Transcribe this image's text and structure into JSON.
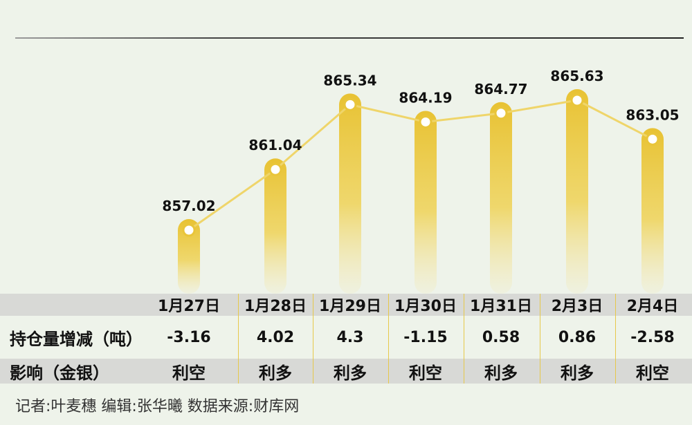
{
  "chart_data": {
    "type": "bar+line",
    "categories": [
      "1月27日",
      "1月28日",
      "1月29日",
      "1月30日",
      "1月31日",
      "2月3日",
      "2月4日"
    ],
    "values": [
      857.02,
      861.04,
      865.34,
      864.19,
      864.77,
      865.63,
      863.05
    ],
    "value_labels": [
      "857.02",
      "861.04",
      "865.34",
      "864.19",
      "864.77",
      "865.63",
      "863.05"
    ],
    "grid": false,
    "legend": "none",
    "colors": {
      "bar": "#e9c53a",
      "line": "#efd56a",
      "marker_fill": "#ffffff",
      "marker_stroke": "#e9c53a"
    }
  },
  "table": {
    "row_change_label": "持仓量增减（吨）",
    "row_impact_label": "影响（金银）",
    "changes": [
      "-3.16",
      "4.02",
      "4.3",
      "-1.15",
      "0.58",
      "0.86",
      "-2.58"
    ],
    "impacts": [
      "利空",
      "利多",
      "利多",
      "利空",
      "利多",
      "利多",
      "利空"
    ]
  },
  "credit": "记者:叶麦穗  编辑:张华曦  数据来源:财库网"
}
